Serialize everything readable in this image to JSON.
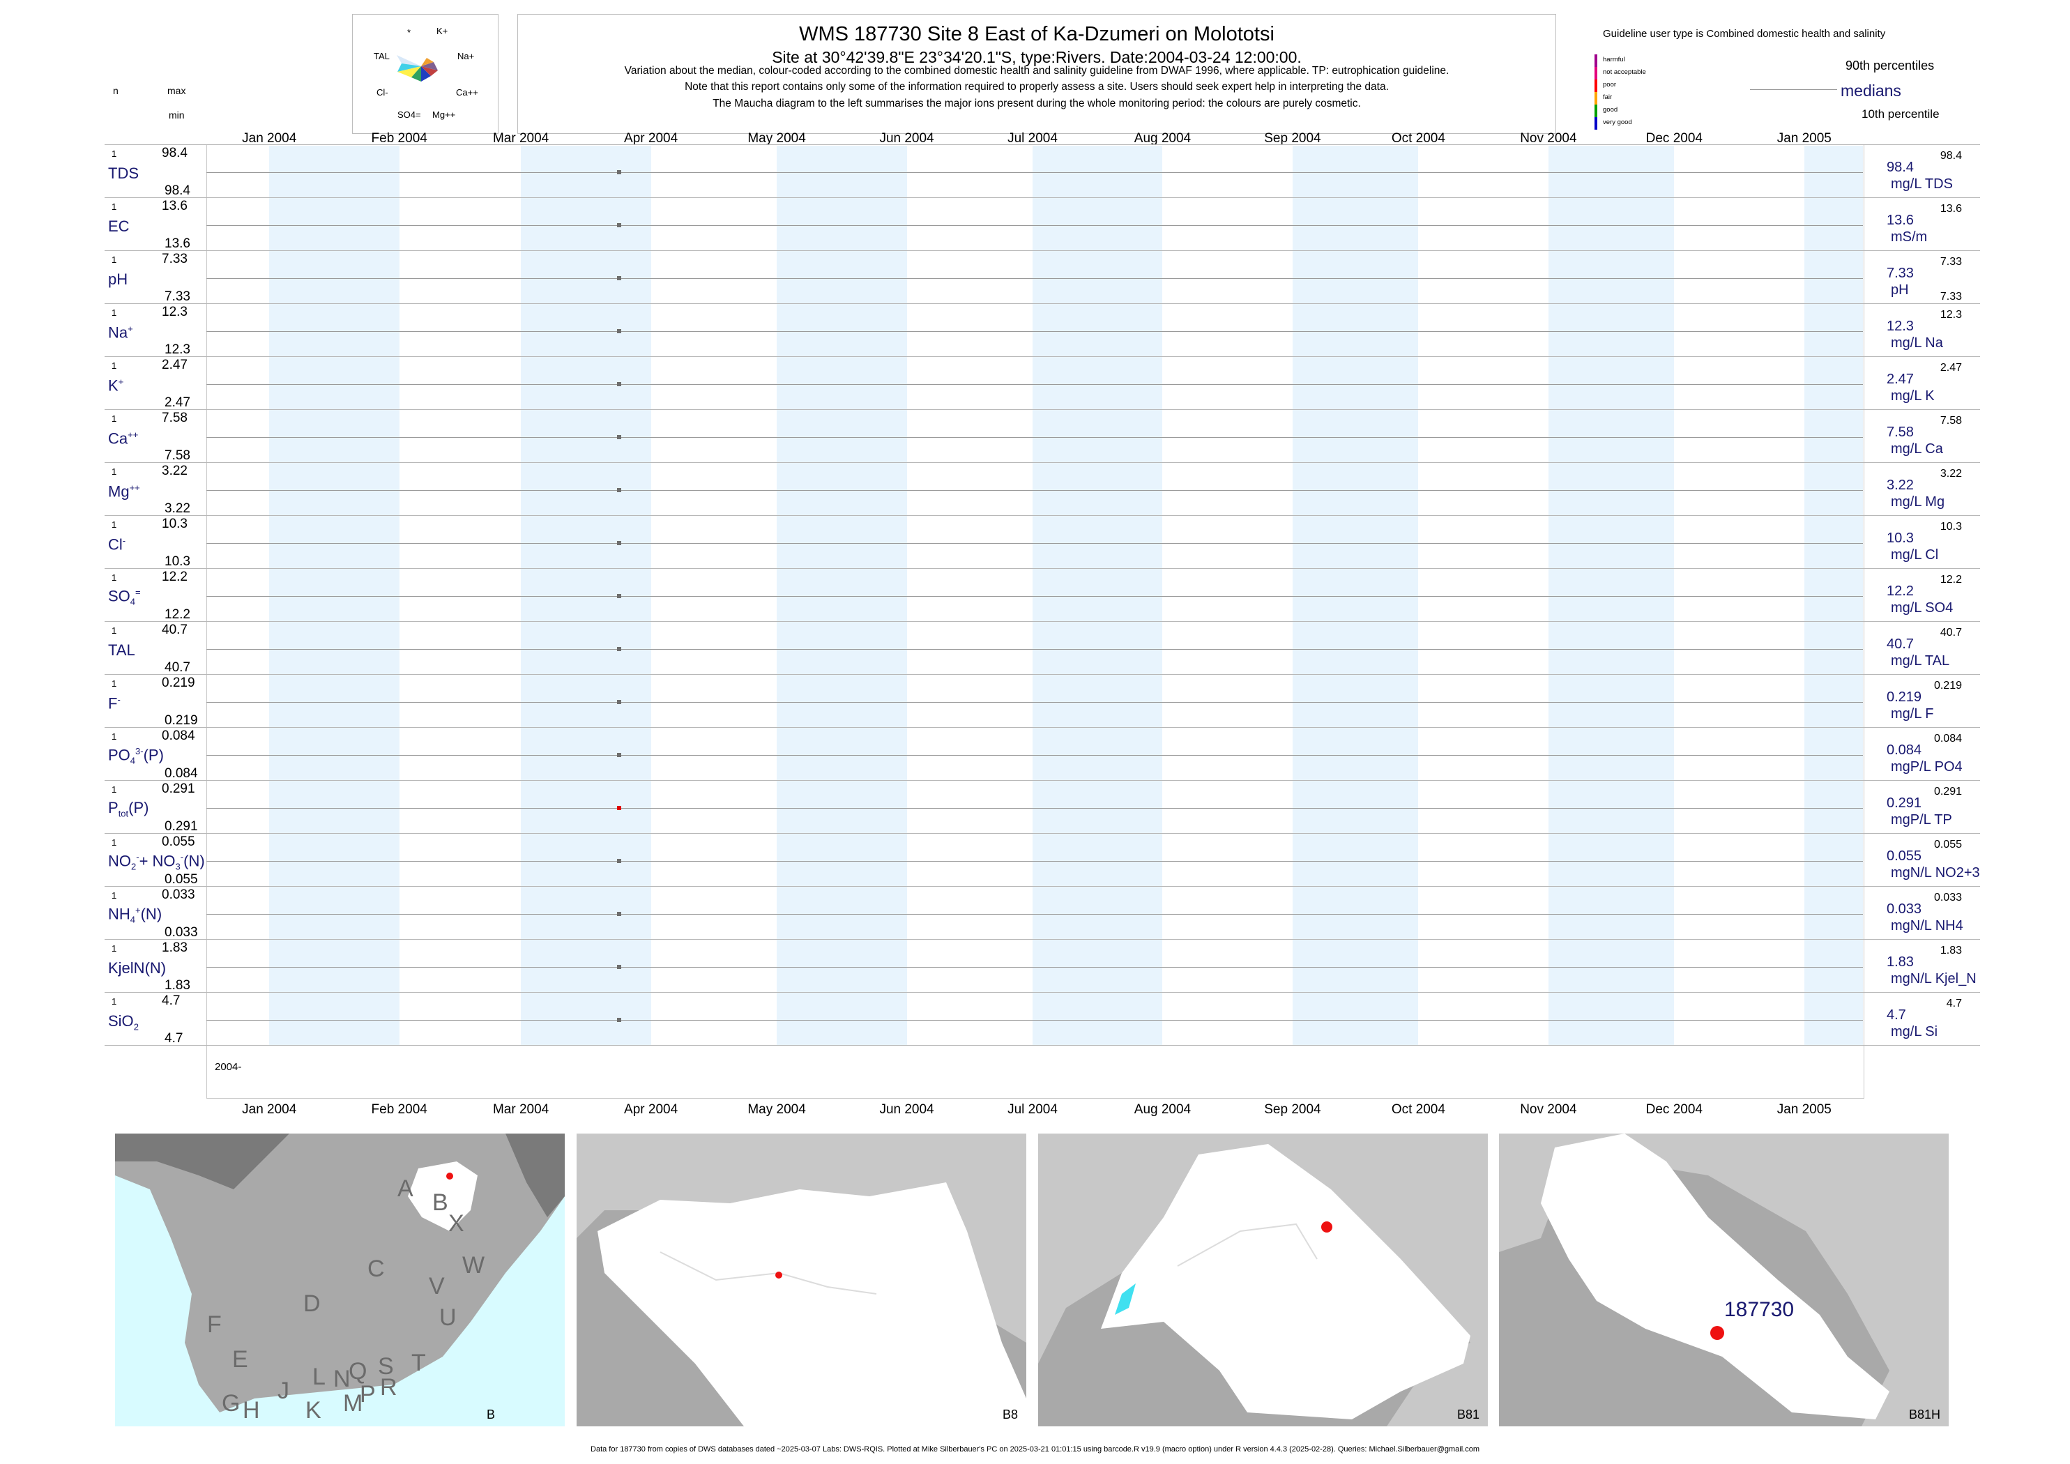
{
  "header": {
    "title": "WMS 187730  Site 8 East of Ka-Dzumeri on Molototsi",
    "subtitle": "Site at 30°42'39.8\"E 23°34'20.1\"S, type:Rivers. Date:2004-03-24 12:00:00.",
    "note1": "Variation about the median,  colour-coded according to the combined domestic health and salinity guideline from DWAF 1996, where applicable. TP: eutrophication guideline.",
    "note2": "Note that this report contains only some of the information required to properly assess a site. Users should seek expert help in interpreting the data.",
    "note3": "The Maucha diagram to the left summarises the major ions present during the whole monitoring period: the colours are purely cosmetic.",
    "col_n": "n",
    "col_max": "max",
    "col_min": "min"
  },
  "maucha": {
    "labels": {
      "star": "*",
      "k": "K+",
      "tal": "TAL",
      "na": "Na+",
      "cl": "Cl-",
      "ca": "Ca++",
      "so4": "SO4=",
      "mg": "Mg++"
    }
  },
  "guideline": {
    "heading": "Guideline user type is Combined domestic health and salinity",
    "levels": [
      {
        "label": "harmful",
        "color": "#a0008c"
      },
      {
        "label": "not acceptable",
        "color": "#e4007c"
      },
      {
        "label": "poor",
        "color": "#ff0000"
      },
      {
        "label": "fair",
        "color": "#ffa500"
      },
      {
        "label": "good",
        "color": "#00a000"
      },
      {
        "label": "very good",
        "color": "#0000c8"
      }
    ],
    "p90": "90th percentiles",
    "medians": "medians",
    "p10": "10th percentile"
  },
  "colors": {
    "band": "#e8f4fd",
    "point_default": "#6e6e6e",
    "point_tp": "#e00000",
    "text_param": "#191970",
    "map_sea": "#d8fbff",
    "map_land": "#a9a9a9",
    "map_catchment": "#ffffff",
    "site_marker": "#ee1111"
  },
  "chart_data": {
    "type": "scatter",
    "x_axis": {
      "ticks": [
        "Jan 2004",
        "Feb 2004",
        "Mar 2004",
        "Apr 2004",
        "May 2004",
        "Jun 2004",
        "Jul 2004",
        "Aug 2004",
        "Sep 2004",
        "Oct 2004",
        "Nov 2004",
        "Dec 2004",
        "Jan 2005"
      ],
      "range": [
        "2003-12-17",
        "2005-01-15"
      ],
      "bottom_label": "2004-"
    },
    "sample_date": "2004-03-24",
    "series": [
      {
        "param": "TDS",
        "n": "1",
        "max": "98.4",
        "min": "98.4",
        "value": "98.4",
        "unit": "mg/L TDS",
        "right_max": "98.4",
        "right_min": ""
      },
      {
        "param": "EC",
        "n": "1",
        "max": "13.6",
        "min": "13.6",
        "value": "13.6",
        "unit": "mS/m",
        "right_max": "13.6",
        "right_min": ""
      },
      {
        "param": "pH",
        "n": "1",
        "max": "7.33",
        "min": "7.33",
        "value": "7.33",
        "unit": "pH",
        "right_max": "7.33",
        "right_min": "7.33"
      },
      {
        "param": "Na",
        "n": "1",
        "max": "12.3",
        "min": "12.3",
        "value": "12.3",
        "unit": "mg/L Na",
        "right_max": "12.3",
        "right_min": ""
      },
      {
        "param": "K",
        "n": "1",
        "max": "2.47",
        "min": "2.47",
        "value": "2.47",
        "unit": "mg/L K",
        "right_max": "2.47",
        "right_min": ""
      },
      {
        "param": "Ca",
        "n": "1",
        "max": "7.58",
        "min": "7.58",
        "value": "7.58",
        "unit": "mg/L Ca",
        "right_max": "7.58",
        "right_min": ""
      },
      {
        "param": "Mg",
        "n": "1",
        "max": "3.22",
        "min": "3.22",
        "value": "3.22",
        "unit": "mg/L Mg",
        "right_max": "3.22",
        "right_min": ""
      },
      {
        "param": "Cl",
        "n": "1",
        "max": "10.3",
        "min": "10.3",
        "value": "10.3",
        "unit": "mg/L Cl",
        "right_max": "10.3",
        "right_min": ""
      },
      {
        "param": "SO4",
        "n": "1",
        "max": "12.2",
        "min": "12.2",
        "value": "12.2",
        "unit": "mg/L SO4",
        "right_max": "12.2",
        "right_min": ""
      },
      {
        "param": "TAL",
        "n": "1",
        "max": "40.7",
        "min": "40.7",
        "value": "40.7",
        "unit": "mg/L TAL",
        "right_max": "40.7",
        "right_min": ""
      },
      {
        "param": "F",
        "n": "1",
        "max": "0.219",
        "min": "0.219",
        "value": "0.219",
        "unit": "mg/L F",
        "right_max": "0.219",
        "right_min": ""
      },
      {
        "param": "PO4(P)",
        "n": "1",
        "max": "0.084",
        "min": "0.084",
        "value": "0.084",
        "unit": "mgP/L PO4",
        "right_max": "0.084",
        "right_min": ""
      },
      {
        "param": "Ptot(P)",
        "n": "1",
        "max": "0.291",
        "min": "0.291",
        "value": "0.291",
        "unit": "mgP/L TP",
        "right_max": "0.291",
        "right_min": ""
      },
      {
        "param": "NO2+NO3(N)",
        "n": "1",
        "max": "0.055",
        "min": "0.055",
        "value": "0.055",
        "unit": "mgN/L NO2+3",
        "right_max": "0.055",
        "right_min": ""
      },
      {
        "param": "NH4(N)",
        "n": "1",
        "max": "0.033",
        "min": "0.033",
        "value": "0.033",
        "unit": "mgN/L NH4",
        "right_max": "0.033",
        "right_min": ""
      },
      {
        "param": "KjelN(N)",
        "n": "1",
        "max": "1.83",
        "min": "1.83",
        "value": "1.83",
        "unit": "mgN/L Kjel_N",
        "right_max": "1.83",
        "right_min": ""
      },
      {
        "param": "SiO2",
        "n": "1",
        "max": "4.7",
        "min": "4.7",
        "value": "4.7",
        "unit": "mg/L Si",
        "right_max": "4.7",
        "right_min": ""
      }
    ]
  },
  "param_display": {
    "tds": "TDS",
    "ec": "EC",
    "ph": "pH",
    "na": "Na",
    "na_sup": "+",
    "k": "K",
    "k_sup": "+",
    "ca": "Ca",
    "ca_sup": "++",
    "mg": "Mg",
    "mg_sup": "++",
    "cl": "Cl",
    "cl_sup": "-",
    "so4": "SO",
    "so4_sub": "4",
    "so4_sup": "=",
    "tal": "TAL",
    "f": "F",
    "f_sup": "-",
    "po4_a": "PO",
    "po4_sub": "4",
    "po4_sup": "3-",
    "po4_b": "(P)",
    "ptot_a": "P",
    "ptot_sub": "tot",
    "ptot_b": "(P)",
    "no_a": "NO",
    "no_sub1": "2",
    "no_sup1": "-",
    "no_b": "+ NO",
    "no_sub2": "3",
    "no_sup2": "-",
    "no_c": "(N)",
    "nh4_a": "NH",
    "nh4_sub": "4",
    "nh4_sup": "+",
    "nh4_b": "(N)",
    "kjel": "KjelN(N)",
    "sio2_a": "SiO",
    "sio2_sub": "2"
  },
  "maps": [
    {
      "label": "B",
      "letters": [
        "A",
        "B",
        "X",
        "W",
        "C",
        "V",
        "D",
        "U",
        "F",
        "T",
        "E",
        "L",
        "N",
        "Q",
        "S",
        "J",
        "R",
        "G",
        "H",
        "K",
        "M",
        "P"
      ]
    },
    {
      "label": "B8"
    },
    {
      "label": "B81"
    },
    {
      "label": "B81H",
      "site": "187730"
    }
  ],
  "footer": "Data for 187730 from copies of DWS databases dated ~2025-03-07 Labs: DWS-RQIS. Plotted at Mike Silberbauer's PC on 2025-03-21 01:01:15 using barcode.R v19.9 (macro option) under R version 4.4.3 (2025-02-28). Queries: Michael.Silberbauer@gmail.com"
}
